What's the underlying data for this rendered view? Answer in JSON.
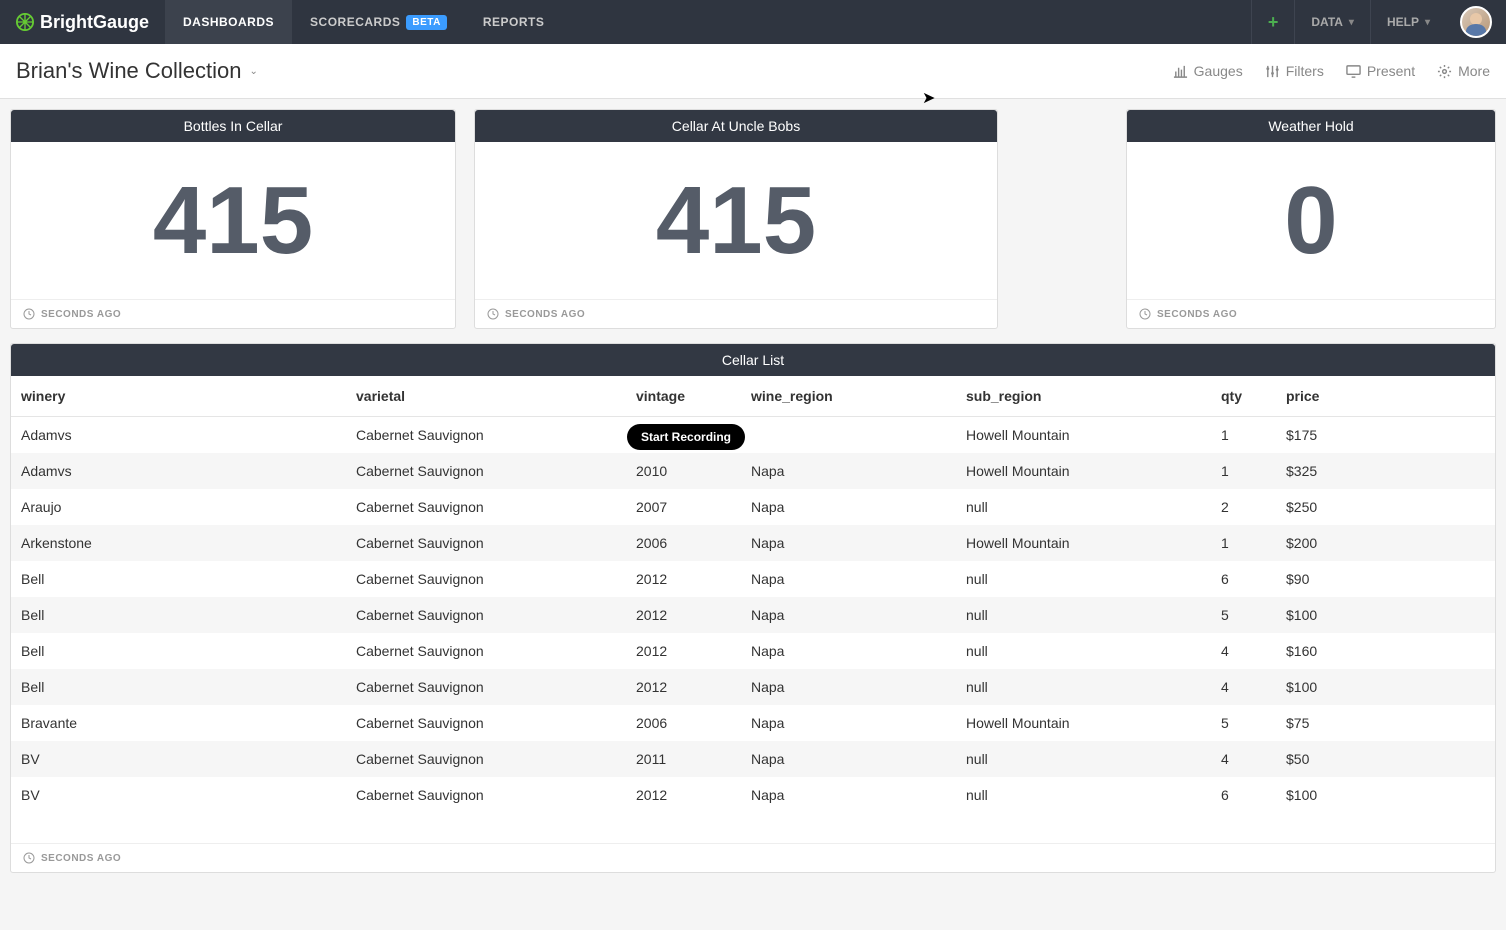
{
  "brand": "BrightGauge",
  "nav": {
    "dashboards": "DASHBOARDS",
    "scorecards": "SCORECARDS",
    "scorecards_badge": "BETA",
    "reports": "REPORTS"
  },
  "topright": {
    "data": "DATA",
    "help": "HELP"
  },
  "subheader": {
    "title": "Brian's Wine Collection",
    "gauges": "Gauges",
    "filters": "Filters",
    "present": "Present",
    "more": "More"
  },
  "cards": [
    {
      "title": "Bottles In Cellar",
      "value": "415",
      "footer": "SECONDS AGO"
    },
    {
      "title": "Cellar At Uncle Bobs",
      "value": "415",
      "footer": "SECONDS AGO"
    },
    {
      "title": "Weather Hold",
      "value": "0",
      "footer": "SECONDS AGO"
    }
  ],
  "table": {
    "title": "Cellar List",
    "footer": "SECONDS AGO",
    "columns": [
      "winery",
      "varietal",
      "vintage",
      "wine_region",
      "sub_region",
      "qty",
      "price"
    ],
    "col_widths": [
      "335px",
      "280px",
      "115px",
      "215px",
      "255px",
      "65px",
      "auto"
    ],
    "rows": [
      [
        "Adamvs",
        "Cabernet Sauvignon",
        "",
        "",
        "Howell Mountain",
        "1",
        "$175"
      ],
      [
        "Adamvs",
        "Cabernet Sauvignon",
        "2010",
        "Napa",
        "Howell Mountain",
        "1",
        "$325"
      ],
      [
        "Araujo",
        "Cabernet Sauvignon",
        "2007",
        "Napa",
        "null",
        "2",
        "$250"
      ],
      [
        "Arkenstone",
        "Cabernet Sauvignon",
        "2006",
        "Napa",
        "Howell Mountain",
        "1",
        "$200"
      ],
      [
        "Bell",
        "Cabernet Sauvignon",
        "2012",
        "Napa",
        "null",
        "6",
        "$90"
      ],
      [
        "Bell",
        "Cabernet Sauvignon",
        "2012",
        "Napa",
        "null",
        "5",
        "$100"
      ],
      [
        "Bell",
        "Cabernet Sauvignon",
        "2012",
        "Napa",
        "null",
        "4",
        "$160"
      ],
      [
        "Bell",
        "Cabernet Sauvignon",
        "2012",
        "Napa",
        "null",
        "4",
        "$100"
      ],
      [
        "Bravante",
        "Cabernet Sauvignon",
        "2006",
        "Napa",
        "Howell Mountain",
        "5",
        "$75"
      ],
      [
        "BV",
        "Cabernet Sauvignon",
        "2011",
        "Napa",
        "null",
        "4",
        "$50"
      ],
      [
        "BV",
        "Cabernet Sauvignon",
        "2012",
        "Napa",
        "null",
        "6",
        "$100"
      ]
    ]
  },
  "tooltip": "Start Recording",
  "colors": {
    "topbar": "#2f3540",
    "card_header": "#323843",
    "big_number": "#555c68",
    "accent_green": "#4caf50",
    "beta_blue": "#3b9cff"
  }
}
